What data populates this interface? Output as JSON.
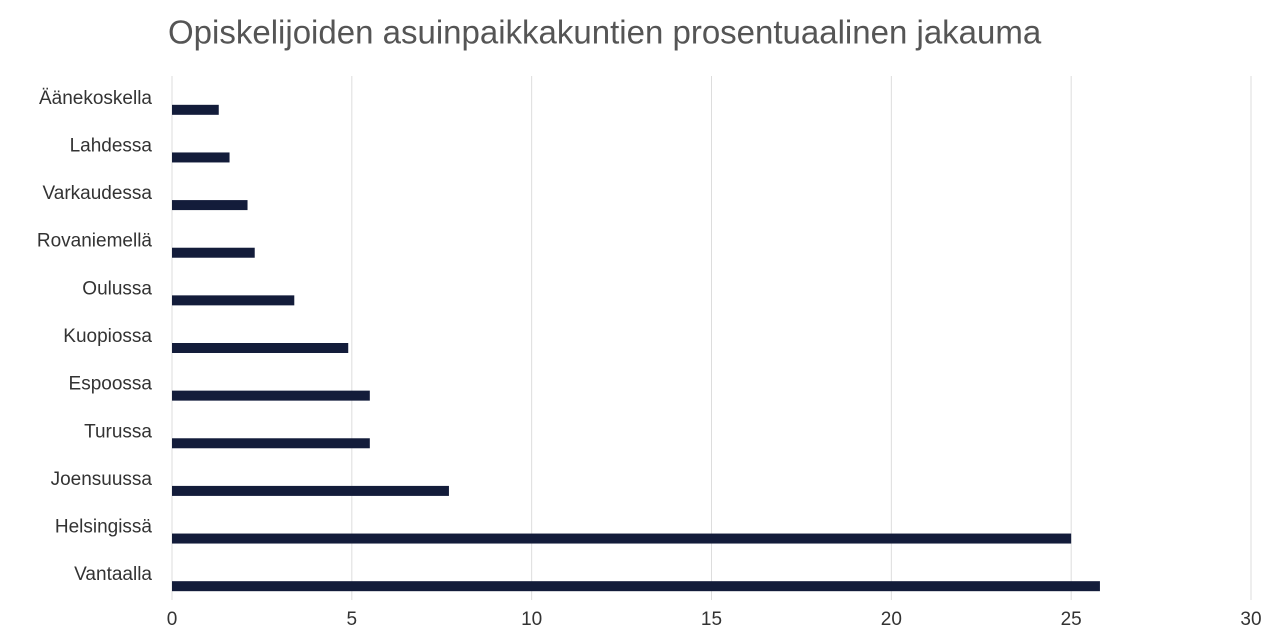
{
  "chart_data": {
    "type": "hbar",
    "title": "Opiskelijoiden asuinpaikkakuntien prosentuaalinen jakauma",
    "categories": [
      "Äänekoskella",
      "Lahdessa",
      "Varkaudessa",
      "Rovaniemellä",
      "Oulussa",
      "Kuopiossa",
      "Espoossa",
      "Turussa",
      "Joensuussa",
      "Helsingissä",
      "Vantaalla"
    ],
    "values": [
      1.3,
      1.6,
      2.1,
      2.3,
      3.4,
      4.9,
      5.5,
      5.5,
      7.7,
      25,
      25.8
    ],
    "color": "#131c3a",
    "xlim": [
      0,
      30
    ],
    "xticks": [
      0,
      5,
      10,
      15,
      20,
      25,
      30
    ],
    "grid": true
  }
}
